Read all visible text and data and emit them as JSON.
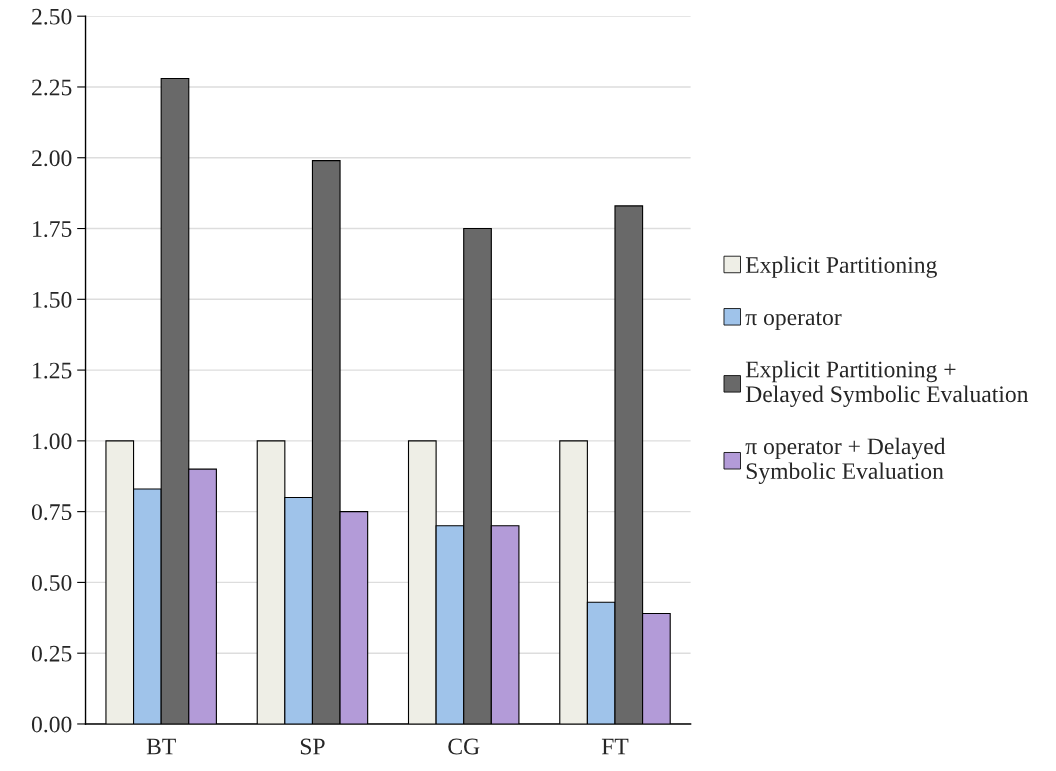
{
  "chart_data": {
    "type": "bar",
    "categories": [
      "BT",
      "SP",
      "CG",
      "FT"
    ],
    "series": [
      {
        "name": "Explicit Partitioning",
        "color": "#eeeee6",
        "values": [
          1.0,
          1.0,
          1.0,
          1.0
        ]
      },
      {
        "name": "π operator",
        "color": "#9fc3ea",
        "values": [
          0.83,
          0.8,
          0.7,
          0.43
        ]
      },
      {
        "name": "Explicit Partitioning +\nDelayed Symbolic Evaluation",
        "color": "#696969",
        "values": [
          2.28,
          1.99,
          1.75,
          1.83
        ]
      },
      {
        "name": "π operator + Delayed\nSymbolic Evaluation",
        "color": "#b39bd8",
        "values": [
          0.9,
          0.75,
          0.7,
          0.39
        ]
      }
    ],
    "ylim": [
      0,
      2.5
    ],
    "yticks": [
      {
        "value": 0,
        "label": "0.00"
      },
      {
        "value": 0.25,
        "label": "0.25"
      },
      {
        "value": 0.5,
        "label": "0.50"
      },
      {
        "value": 0.75,
        "label": "0.75"
      },
      {
        "value": 1,
        "label": "1.00"
      },
      {
        "value": 1.25,
        "label": "1.25"
      },
      {
        "value": 1.5,
        "label": "1.50"
      },
      {
        "value": 1.75,
        "label": "1.75"
      },
      {
        "value": 2,
        "label": "2.00"
      },
      {
        "value": 2.25,
        "label": "2.25"
      },
      {
        "value": 2.5,
        "label": "2.50"
      }
    ],
    "grid": "y",
    "legend": "right"
  }
}
